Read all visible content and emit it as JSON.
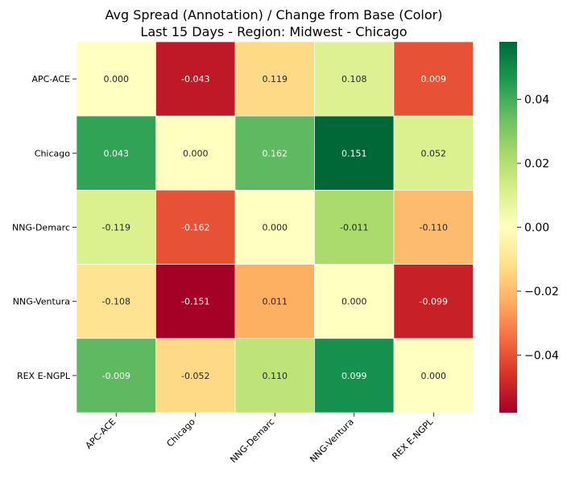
{
  "chart_data": {
    "type": "heatmap",
    "title_line1": "Avg Spread (Annotation) / Change from Base (Color)",
    "title_line2": "Last 15 Days - Region: Midwest - Chicago",
    "row_labels": [
      "APC-ACE",
      "Chicago",
      "NNG-Demarc",
      "NNG-Ventura",
      "REX E-NGPL"
    ],
    "col_labels": [
      "APC-ACE",
      "Chicago",
      "NNG-Demarc",
      "NNG-Ventura",
      "REX E-NGPL"
    ],
    "annotations": [
      [
        "0.000",
        "-0.043",
        "0.119",
        "0.108",
        "0.009"
      ],
      [
        "0.043",
        "0.000",
        "0.162",
        "0.151",
        "0.052"
      ],
      [
        "-0.119",
        "-0.162",
        "0.000",
        "-0.011",
        "-0.110"
      ],
      [
        "-0.108",
        "-0.151",
        "0.011",
        "0.000",
        "-0.099"
      ],
      [
        "-0.009",
        "-0.052",
        "0.110",
        "0.099",
        "0.000"
      ]
    ],
    "color_values": [
      [
        0.0,
        -0.052,
        -0.013,
        0.01,
        -0.04
      ],
      [
        0.043,
        0.0,
        0.036,
        0.058,
        0.011
      ],
      [
        0.011,
        -0.04,
        0.0,
        0.022,
        -0.02
      ],
      [
        -0.01,
        -0.058,
        -0.023,
        0.0,
        -0.05
      ],
      [
        0.036,
        -0.013,
        0.018,
        0.048,
        0.0
      ]
    ],
    "colormap": "RdYlGn",
    "vmin": -0.058,
    "vmax": 0.058,
    "colorbar_ticks": [
      "0.04",
      "0.02",
      "0.00",
      "−0.02",
      "−0.04"
    ],
    "colorbar_tick_values": [
      0.04,
      0.02,
      0.0,
      -0.02,
      -0.04
    ]
  }
}
